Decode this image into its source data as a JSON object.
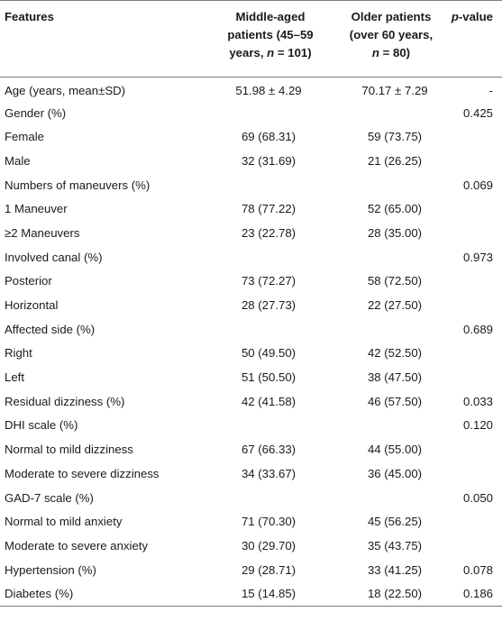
{
  "header": {
    "features": "Features",
    "middle_line1": "Middle-aged",
    "middle_line2": "patients (45–59",
    "middle_line3_pre": "years, ",
    "middle_n": "n",
    "middle_line3_post": " = 101)",
    "older_line1": "Older patients",
    "older_line2": "(over 60 years,",
    "older_n": "n",
    "older_line3_post": " = 80)",
    "p_italic": "p",
    "p_rest": "-value"
  },
  "rows": [
    {
      "label": "Age (years, mean±SD)",
      "middle": "51.98 ± 4.29",
      "older": "70.17 ± 7.29",
      "p": "-"
    },
    {
      "label": "Gender (%)",
      "middle": "",
      "older": "",
      "p": "0.425"
    },
    {
      "label": "Female",
      "middle": "69 (68.31)",
      "older": "59 (73.75)",
      "p": ""
    },
    {
      "label": "Male",
      "middle": "32 (31.69)",
      "older": "21 (26.25)",
      "p": ""
    },
    {
      "label": "Numbers of maneuvers (%)",
      "middle": "",
      "older": "",
      "p": "0.069"
    },
    {
      "label": "1 Maneuver",
      "middle": "78 (77.22)",
      "older": "52 (65.00)",
      "p": ""
    },
    {
      "label": "≥2 Maneuvers",
      "middle": "23 (22.78)",
      "older": "28 (35.00)",
      "p": ""
    },
    {
      "label": "Involved canal (%)",
      "middle": "",
      "older": "",
      "p": "0.973"
    },
    {
      "label": "Posterior",
      "middle": "73 (72.27)",
      "older": "58 (72.50)",
      "p": ""
    },
    {
      "label": "Horizontal",
      "middle": "28 (27.73)",
      "older": "22 (27.50)",
      "p": ""
    },
    {
      "label": "Affected side (%)",
      "middle": "",
      "older": "",
      "p": "0.689"
    },
    {
      "label": "Right",
      "middle": "50 (49.50)",
      "older": "42 (52.50)",
      "p": ""
    },
    {
      "label": "Left",
      "middle": "51 (50.50)",
      "older": "38 (47.50)",
      "p": ""
    },
    {
      "label": "Residual dizziness (%)",
      "middle": "42 (41.58)",
      "older": "46 (57.50)",
      "p": "0.033"
    },
    {
      "label": "DHI scale (%)",
      "middle": "",
      "older": "",
      "p": "0.120"
    },
    {
      "label": "Normal to mild dizziness",
      "middle": "67 (66.33)",
      "older": "44 (55.00)",
      "p": ""
    },
    {
      "label": "Moderate to severe dizziness",
      "middle": "34 (33.67)",
      "older": "36 (45.00)",
      "p": ""
    },
    {
      "label": "GAD-7 scale (%)",
      "middle": "",
      "older": "",
      "p": "0.050"
    },
    {
      "label": "Normal to mild anxiety",
      "middle": "71 (70.30)",
      "older": "45 (56.25)",
      "p": ""
    },
    {
      "label": "Moderate to severe anxiety",
      "middle": "30 (29.70)",
      "older": "35 (43.75)",
      "p": ""
    },
    {
      "label": "Hypertension (%)",
      "middle": "29 (28.71)",
      "older": "33 (41.25)",
      "p": "0.078"
    },
    {
      "label": "Diabetes (%)",
      "middle": "15 (14.85)",
      "older": "18 (22.50)",
      "p": "0.186"
    }
  ]
}
